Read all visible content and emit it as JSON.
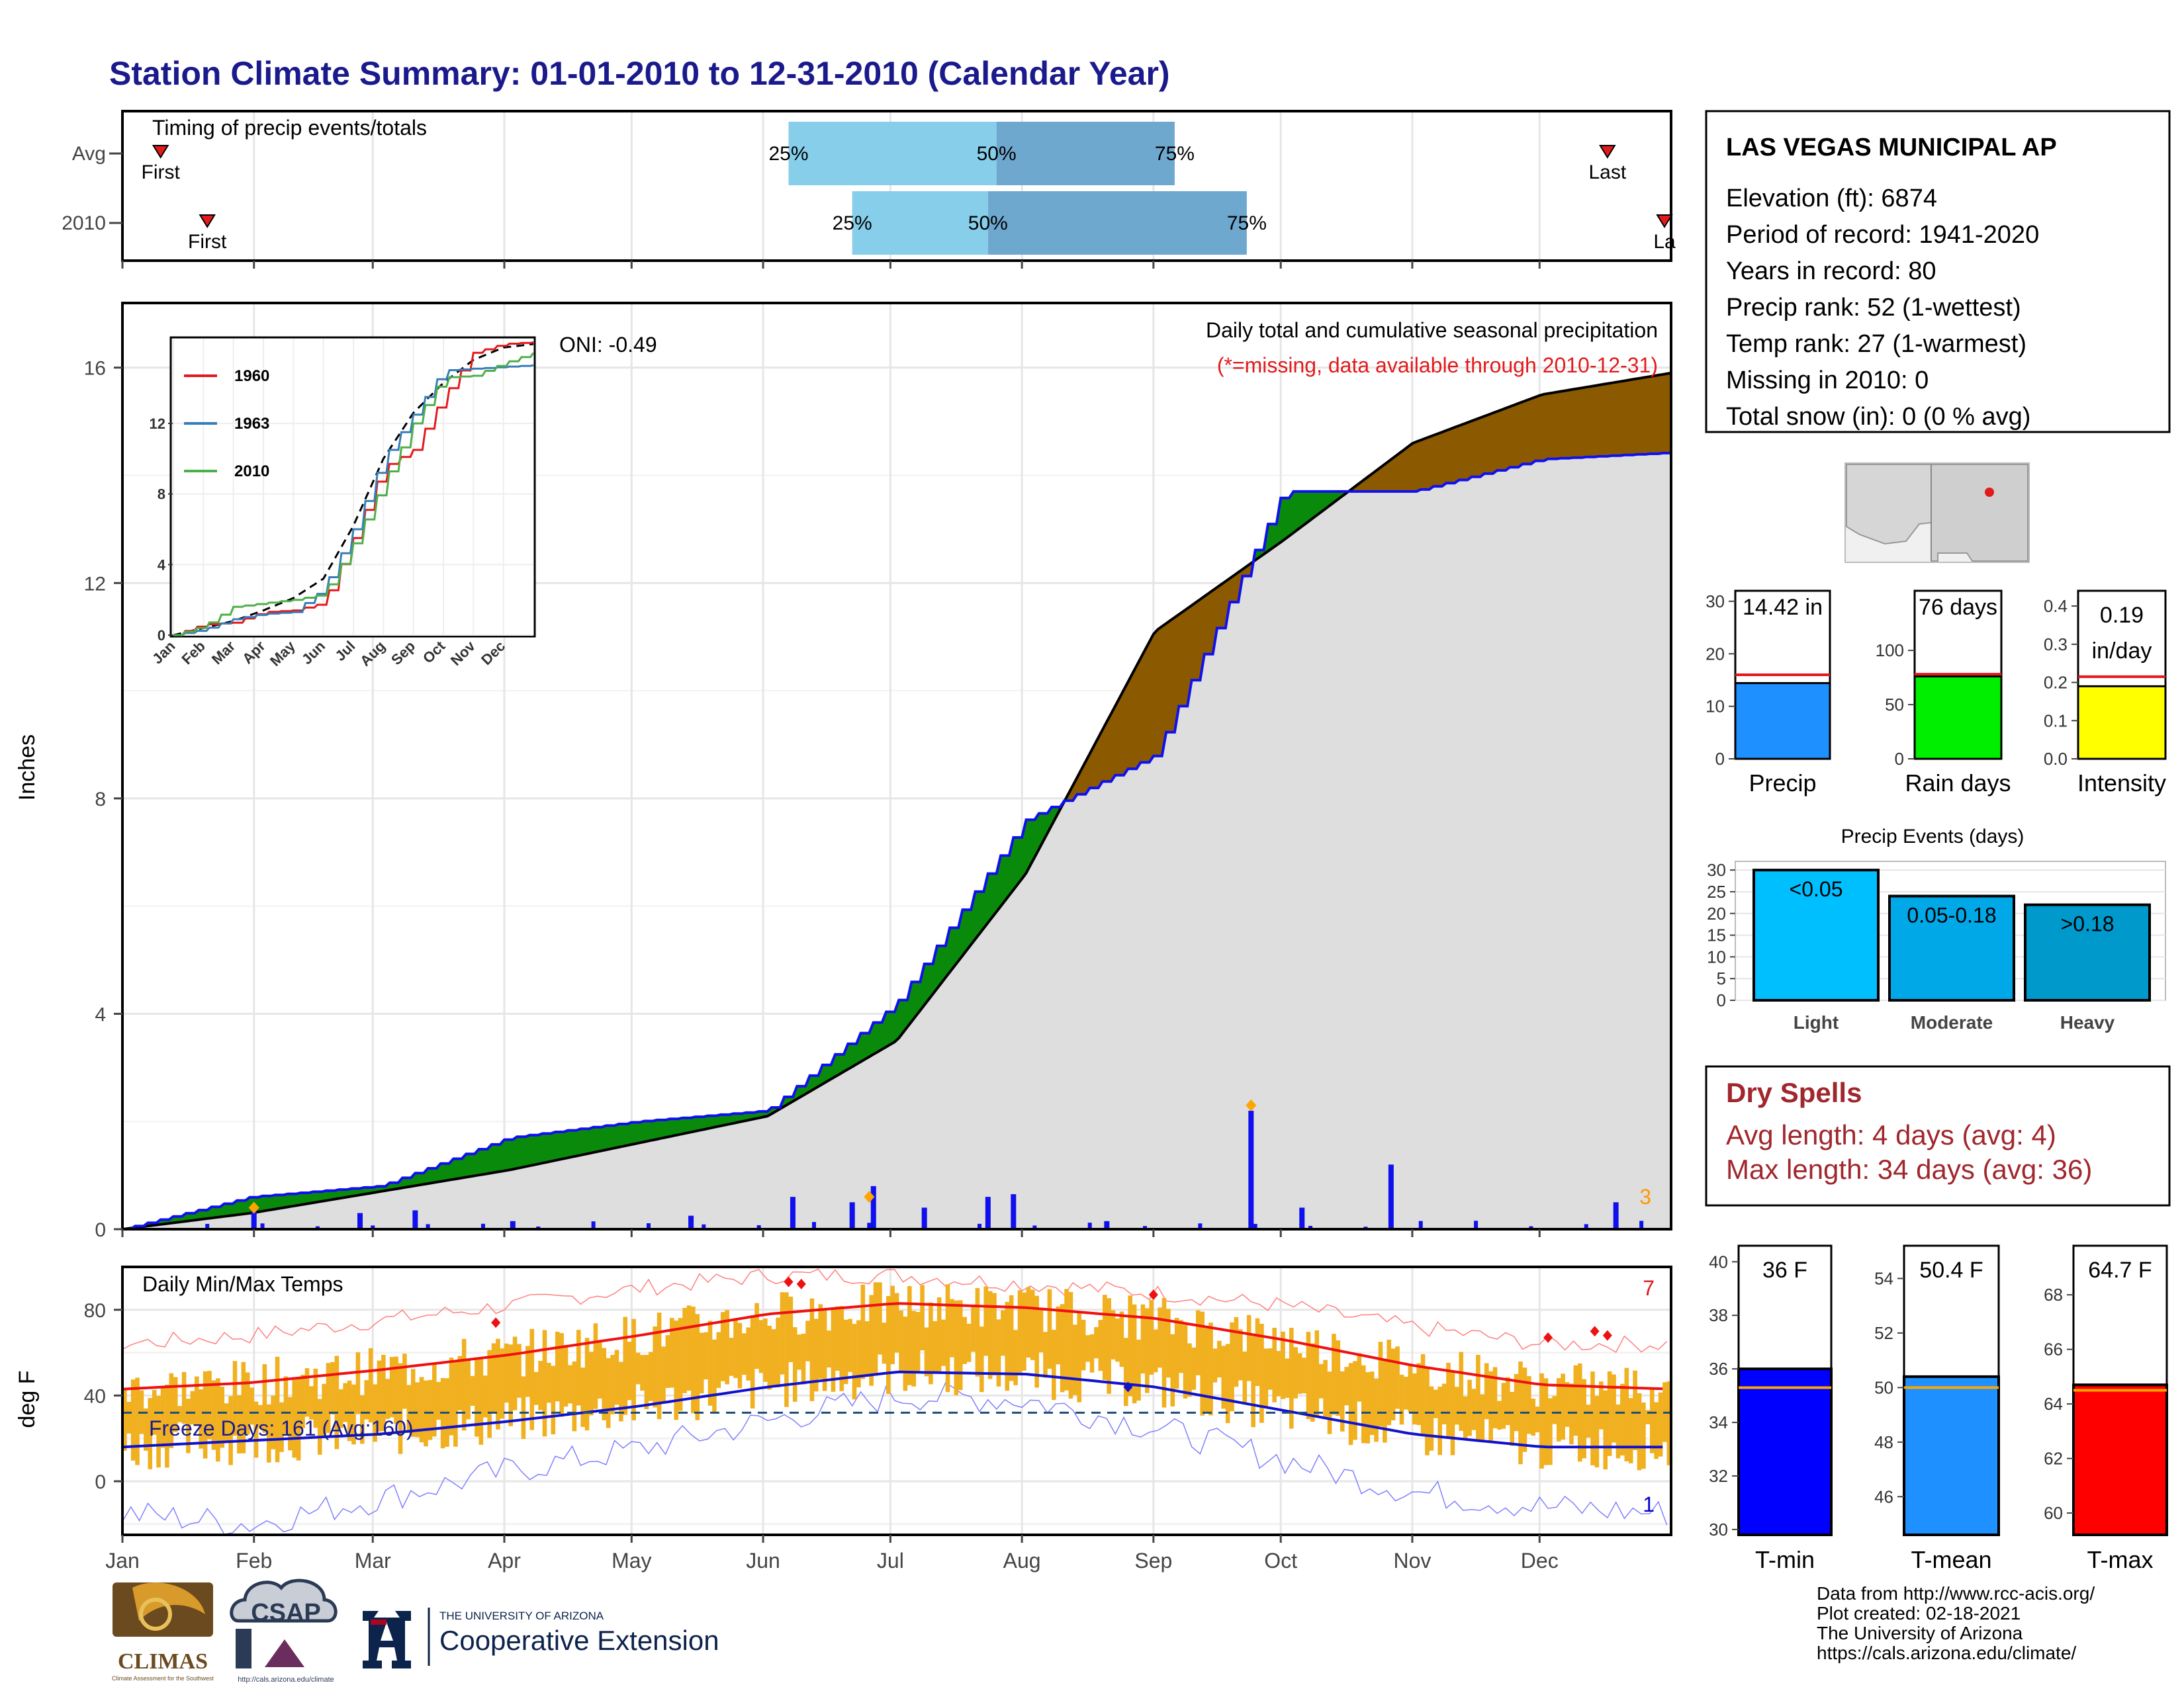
{
  "header": {
    "title": "Station Climate Summary: 01-01-2010 to 12-31-2010 (Calendar Year)"
  },
  "months": [
    "Jan",
    "Feb",
    "Mar",
    "Apr",
    "May",
    "Jun",
    "Jul",
    "Aug",
    "Sep",
    "Oct",
    "Nov",
    "Dec"
  ],
  "timing": {
    "panel_label": "Timing of precip events/totals",
    "rows": [
      {
        "name": "Avg",
        "first_doy": 9,
        "last_doy": 350,
        "p25_doy": 157,
        "p50_doy": 206,
        "p75_doy": 248,
        "first_label": "First",
        "last_label": "Last",
        "p25_label": "25%",
        "p50_label": "50%",
        "p75_label": "75%"
      },
      {
        "name": "2010",
        "first_doy": 20,
        "last_doy": 365,
        "p25_doy": 172,
        "p50_doy": 204,
        "p75_doy": 265,
        "first_label": "First",
        "last_label": "La",
        "p25_label": "25%",
        "p50_label": "50%",
        "p75_label": "75%"
      }
    ],
    "colors": {
      "light": "#87ceeb",
      "dark": "#6fa8cf",
      "marker": "#e31a1c"
    }
  },
  "precip": {
    "ylabel": "Inches",
    "title": "Daily total and cumulative seasonal precipitation",
    "subtitle": "(*=missing, data available through 2010-12-31)",
    "oni_label": "ONI: -0.49",
    "count_label": "3",
    "yticks": [
      0,
      4,
      8,
      12,
      16
    ],
    "ylim": [
      0,
      17.2
    ]
  },
  "inset": {
    "yticks": [
      0,
      4,
      8,
      12
    ],
    "legend": [
      {
        "name": "1960",
        "color": "#e31a1c"
      },
      {
        "name": "1963",
        "color": "#377eb8"
      },
      {
        "name": "2010",
        "color": "#4daf4a"
      }
    ]
  },
  "temp": {
    "ylabel": "deg F",
    "title": "Daily Min/Max Temps",
    "freeze_label": "Freeze Days: 161 (Avg:160)",
    "max_count_label": "7",
    "min_count_label": "1",
    "yticks": [
      0,
      40,
      80
    ],
    "ylim": [
      -25,
      100
    ]
  },
  "station": {
    "name": "LAS VEGAS MUNICIPAL AP",
    "lines": [
      "Elevation (ft): 6874",
      "Period of record: 1941-2020",
      "Years in record: 80",
      "Precip rank: 52 (1-wettest)",
      "Temp rank: 27 (1-warmest)",
      "Missing in 2010: 0",
      "Total snow (in): 0 (0 % avg)"
    ]
  },
  "summary_bars": [
    {
      "label": "Precip",
      "value_label": "14.42 in",
      "value": 14.42,
      "avg": 16.0,
      "ymax": 32,
      "yticks": [
        0,
        10,
        20,
        30
      ],
      "color": "#1e90ff"
    },
    {
      "label": "Rain days",
      "value_label": "76 days",
      "value": 76,
      "avg": 78,
      "ymax": 155,
      "yticks": [
        0,
        50,
        100
      ],
      "color": "#00ee00"
    },
    {
      "label": "Intensity",
      "value_label": "0.19 in/day",
      "value_line1": "0.19",
      "value_line2": "in/day",
      "value": 0.19,
      "avg": 0.215,
      "ymax": 0.44,
      "yticks": [
        "0.0",
        "0.1",
        "0.2",
        "0.3",
        "0.4"
      ],
      "color": "#ffff00"
    }
  ],
  "events": {
    "title": "Precip Events (days)",
    "yticks": [
      0,
      5,
      10,
      15,
      20,
      25,
      30
    ],
    "bars": [
      {
        "category": "Light",
        "label": "<0.05",
        "value": 30,
        "color": "#00bfff"
      },
      {
        "category": "Moderate",
        "label": "0.05-0.18",
        "value": 24,
        "color": "#00a8e8"
      },
      {
        "category": "Heavy",
        "label": ">0.18",
        "value": 22,
        "color": "#0099cc"
      }
    ]
  },
  "dry_spells": {
    "title": "Dry Spells",
    "avg_line": "Avg length: 4 days (avg: 4)",
    "max_line": "Max length: 34 days (avg: 36)"
  },
  "temp_bars": [
    {
      "label": "T-min",
      "value_label": "36 F",
      "value": 36,
      "avg": 35.3,
      "ymin": 29.8,
      "ymax": 40.6,
      "yticks": [
        30,
        32,
        34,
        36,
        38,
        40
      ],
      "color": "#0000ff"
    },
    {
      "label": "T-mean",
      "value_label": "50.4 F",
      "value": 50.4,
      "avg": 50.0,
      "ymin": 44.6,
      "ymax": 55.2,
      "yticks": [
        46,
        48,
        50,
        52,
        54
      ],
      "color": "#1e90ff"
    },
    {
      "label": "T-max",
      "value_label": "64.7 F",
      "value": 64.7,
      "avg": 64.5,
      "ymin": 59.2,
      "ymax": 69.8,
      "yticks": [
        60,
        62,
        64,
        66,
        68
      ],
      "color": "#ff0000"
    }
  ],
  "footer": {
    "credits": [
      "Data from http://www.rcc-acis.org/",
      "Plot created: 02-18-2021",
      "The University of Arizona",
      "https://cals.arizona.edu/climate/"
    ],
    "logos": {
      "climas": "CLIMAS",
      "climas_sub": "Climate Assessment for the Southwest",
      "csap": "CSAP",
      "csap_url": "http://cals.arizona.edu/climate",
      "ua_top": "THE UNIVERSITY OF ARIZONA",
      "ua_main": "Cooperative Extension"
    }
  },
  "chart_data": [
    {
      "type": "area",
      "title": "Daily total and cumulative seasonal precipitation",
      "ylabel": "Inches",
      "ylim": [
        0,
        17.2
      ],
      "x": [
        "Jan",
        "Feb",
        "Mar",
        "Apr",
        "May",
        "Jun",
        "Jul",
        "Aug",
        "Sep",
        "Oct",
        "Nov",
        "Dec",
        "Dec 31"
      ],
      "series": [
        {
          "name": "average cumulative",
          "values": [
            0,
            0.3,
            0.7,
            1.1,
            1.6,
            2.1,
            3.5,
            6.6,
            11.1,
            12.8,
            14.6,
            15.5,
            15.9
          ]
        },
        {
          "name": "2010 cumulative",
          "values": [
            0,
            0.6,
            0.8,
            1.7,
            2.0,
            2.2,
            4.2,
            7.6,
            8.8,
            13.7,
            13.7,
            14.3,
            14.42
          ]
        }
      ],
      "daily_bars": [
        {
          "x": "Jan 31",
          "value": 0.35
        },
        {
          "x": "Feb 25",
          "value": 0.3
        },
        {
          "x": "Mar 10",
          "value": 0.35
        },
        {
          "x": "Apr 2",
          "value": 0.15
        },
        {
          "x": "May 14",
          "value": 0.25
        },
        {
          "x": "Jun 7",
          "value": 0.6
        },
        {
          "x": "Jun 21",
          "value": 0.5
        },
        {
          "x": "Jun 26",
          "value": 0.8
        },
        {
          "x": "Jul 8",
          "value": 0.4
        },
        {
          "x": "Jul 23",
          "value": 0.6
        },
        {
          "x": "Jul 29",
          "value": 0.65
        },
        {
          "x": "Aug 20",
          "value": 0.15
        },
        {
          "x": "Sep 23",
          "value": 2.2
        },
        {
          "x": "Oct 5",
          "value": 0.4
        },
        {
          "x": "Oct 26",
          "value": 1.2
        },
        {
          "x": "Dec 18",
          "value": 0.5
        }
      ],
      "annotations": [
        "ONI: -0.49",
        "3"
      ]
    },
    {
      "type": "line",
      "title": "",
      "x": [
        "Jan",
        "Feb",
        "Mar",
        "Apr",
        "May",
        "Jun",
        "Jul",
        "Aug",
        "Sep",
        "Oct",
        "Nov",
        "Dec",
        "end"
      ],
      "ylim": [
        0,
        16.5
      ],
      "series": [
        {
          "name": "average",
          "values": [
            0,
            0.4,
            0.8,
            1.4,
            2.1,
            3.2,
            6.2,
            10.0,
            12.6,
            14.3,
            15.6,
            16.3,
            16.5
          ]
        },
        {
          "name": "1960",
          "values": [
            0,
            0.6,
            0.7,
            1.3,
            1.4,
            1.8,
            5.5,
            9.5,
            10.5,
            13.5,
            16.0,
            16.5,
            16.6
          ]
        },
        {
          "name": "1963",
          "values": [
            0,
            0.3,
            0.9,
            1.2,
            1.3,
            2.6,
            6.0,
            10.0,
            12.5,
            15.0,
            15.1,
            15.2,
            15.3
          ]
        },
        {
          "name": "2010",
          "values": [
            0,
            0.5,
            1.6,
            1.8,
            2.0,
            2.3,
            5.2,
            8.6,
            12.0,
            14.6,
            14.7,
            15.4,
            16.0
          ]
        }
      ]
    },
    {
      "type": "line",
      "title": "Daily Min/Max Temps",
      "ylabel": "deg F",
      "ylim": [
        -25,
        100
      ],
      "x": [
        "Jan",
        "Feb",
        "Mar",
        "Apr",
        "May",
        "Jun",
        "Jul",
        "Aug",
        "Sep",
        "Oct",
        "Nov",
        "Dec",
        "end"
      ],
      "series": [
        {
          "name": "avg max",
          "values": [
            43,
            46,
            52,
            59,
            68,
            78,
            83,
            81,
            76,
            66,
            54,
            45,
            43
          ]
        },
        {
          "name": "avg min",
          "values": [
            16,
            19,
            22,
            28,
            35,
            44,
            51,
            50,
            44,
            33,
            22,
            16,
            16
          ]
        },
        {
          "name": "record high",
          "values": [
            64,
            68,
            75,
            82,
            90,
            96,
            96,
            92,
            88,
            82,
            72,
            64,
            64
          ]
        },
        {
          "name": "record low",
          "values": [
            -15,
            -20,
            -8,
            5,
            15,
            28,
            40,
            38,
            25,
            10,
            -5,
            -12,
            -15
          ]
        }
      ],
      "reference_line": {
        "name": "freezing",
        "value": 32
      },
      "annotations": [
        "Freeze Days: 161 (Avg:160)",
        "7",
        "1"
      ]
    },
    {
      "type": "bar",
      "title": "Precip Events (days)",
      "categories": [
        "Light",
        "Moderate",
        "Heavy"
      ],
      "values": [
        30,
        24,
        22
      ]
    }
  ]
}
